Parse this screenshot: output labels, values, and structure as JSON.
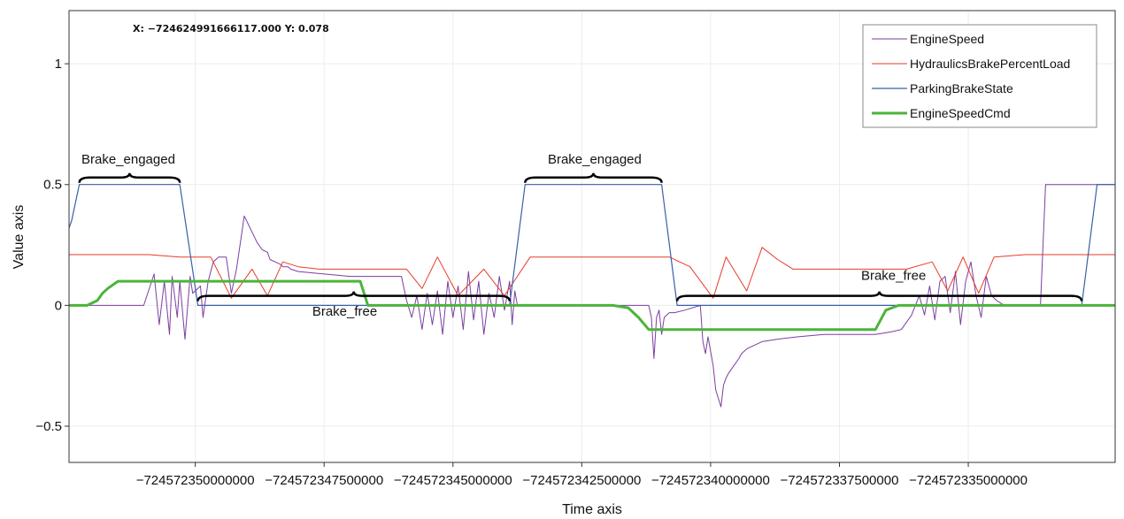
{
  "readout": {
    "text": "X: −724624991666117.000 Y: 0.078"
  },
  "chart_data": {
    "type": "line",
    "xlabel": "Time axis",
    "ylabel": "Value axis",
    "xlim": [
      -724572352450000,
      -724572332150000
    ],
    "ylim": [
      -0.65,
      1.22
    ],
    "x_tick_values": [
      -724572350000000,
      -724572347500000,
      -724572345000000,
      -724572342500000,
      -724572340000000,
      -724572337500000,
      -724572335000000
    ],
    "x_tick_labels": [
      "−724572350000000",
      "−724572347500000",
      "−724572345000000",
      "−724572342500000",
      "−724572340000000",
      "−724572337500000",
      "−724572335000000"
    ],
    "y_tick_values": [
      1,
      0.5,
      0,
      -0.5
    ],
    "y_tick_labels": [
      "1",
      "0.5",
      "0",
      "−0.5"
    ],
    "grid": true,
    "legend_position": "top-right",
    "series": [
      {
        "name": "EngineSpeed",
        "color": "#7b3fa0",
        "x": [
          -724572352450000,
          -724572351000000,
          -724572350800000,
          -724572350700000,
          -724572350600000,
          -724572350500000,
          -724572350450000,
          -724572350350000,
          -724572350300000,
          -724572350200000,
          -724572350100000,
          -724572350050000,
          -724572349900000,
          -724572349850000,
          -724572349750000,
          -724572349650000,
          -724572349550000,
          -724572349400000,
          -724572349300000,
          -724572349200000,
          -724572349050000,
          -724572348800000,
          -724572348700000,
          -724572348600000,
          -724572348550000,
          -724572348450000,
          -724572348350000,
          -724572348300000,
          -724572348200000,
          -724572348150000,
          -724572348000000,
          -724572347500000,
          -724572347000000,
          -724572346500000,
          -724572346000000,
          -724572345900000,
          -724572345800000,
          -724572345700000,
          -724572345600000,
          -724572345500000,
          -724572345400000,
          -724572345300000,
          -724572345200000,
          -724572345100000,
          -724572345000000,
          -724572344900000,
          -724572344800000,
          -724572344700000,
          -724572344600000,
          -724572344500000,
          -724572344400000,
          -724572344300000,
          -724572344200000,
          -724572344100000,
          -724572344000000,
          -724572343900000,
          -724572343850000,
          -724572343800000,
          -724572343750000,
          -724572343700000,
          -724572343000000,
          -724572342000000,
          -724572341200000,
          -724572341150000,
          -724572341100000,
          -724572341050000,
          -724572341000000,
          -724572340950000,
          -724572340900000,
          -724572340800000,
          -724572340700000,
          -724572340500000,
          -724572340200000,
          -724572340150000,
          -724572340100000,
          -724572340050000,
          -724572339950000,
          -724572339900000,
          -724572339800000,
          -724572339750000,
          -724572339700000,
          -724572339650000,
          -724572339550000,
          -724572339450000,
          -724572339400000,
          -724572339300000,
          -724572339200000,
          -724572339000000,
          -724572338700000,
          -724572338300000,
          -724572337800000,
          -724572337500000,
          -724572337200000,
          -724572336800000,
          -724572336500000,
          -724572336300000,
          -724572336100000,
          -724572335950000,
          -724572335850000,
          -724572335750000,
          -724572335650000,
          -724572335550000,
          -724572335450000,
          -724572335350000,
          -724572335250000,
          -724572335150000,
          -724572335050000,
          -724572334950000,
          -724572334850000,
          -724572334750000,
          -724572334650000,
          -724572334550000,
          -724572334450000,
          -724572334300000,
          -724572334100000,
          -724572333600000,
          -724572333500000,
          -724572332150000
        ],
        "y": [
          0,
          0,
          0.13,
          -0.08,
          0.1,
          -0.12,
          0.12,
          -0.05,
          0.1,
          -0.14,
          0.12,
          0.05,
          0.08,
          -0.05,
          0.1,
          0.18,
          0.2,
          0.2,
          0.05,
          0.15,
          0.37,
          0.26,
          0.23,
          0.22,
          0.19,
          0.18,
          0.17,
          0.16,
          0.16,
          0.15,
          0.14,
          0.13,
          0.12,
          0.12,
          0.12,
          0.02,
          -0.05,
          0.04,
          -0.1,
          0.05,
          -0.08,
          0.06,
          -0.12,
          0.1,
          -0.05,
          0.08,
          -0.1,
          0.14,
          -0.06,
          0.1,
          -0.12,
          0.05,
          -0.05,
          0.12,
          -0.02,
          0.1,
          -0.08,
          0.06,
          0,
          0,
          0,
          0,
          0,
          -0.05,
          -0.22,
          -0.05,
          -0.02,
          -0.12,
          -0.05,
          -0.03,
          -0.03,
          -0.02,
          0,
          -0.15,
          -0.2,
          -0.13,
          -0.25,
          -0.35,
          -0.42,
          -0.33,
          -0.3,
          -0.28,
          -0.25,
          -0.22,
          -0.2,
          -0.18,
          -0.17,
          -0.15,
          -0.14,
          -0.13,
          -0.12,
          -0.12,
          -0.12,
          -0.12,
          -0.11,
          -0.1,
          -0.04,
          0.04,
          -0.04,
          0.08,
          -0.06,
          0.1,
          0.12,
          -0.03,
          0.14,
          -0.08,
          0.1,
          0.18,
          0.04,
          -0.05,
          0.12,
          0.04,
          0.02,
          0,
          0,
          0,
          0.5,
          0.5
        ]
      },
      {
        "name": "HydraulicsBrakePercentLoad",
        "color": "#e83a2a",
        "x": [
          -724572352450000,
          -724572350900000,
          -724572350300000,
          -724572349700000,
          -724572349300000,
          -724572348900000,
          -724572348600000,
          -724572348300000,
          -724572348000000,
          -724572347600000,
          -724572346700000,
          -724572345900000,
          -724572345600000,
          -724572345300000,
          -724572344900000,
          -724572344400000,
          -724572344000000,
          -724572343500000,
          -724572340800000,
          -724572340400000,
          -724572339950000,
          -724572339700000,
          -724572339300000,
          -724572339000000,
          -724572338700000,
          -724572338400000,
          -724572337500000,
          -724572336200000,
          -724572335700000,
          -724572335400000,
          -724572335100000,
          -724572334800000,
          -724572334500000,
          -724572333900000,
          -724572332150000
        ],
        "y": [
          0.21,
          0.21,
          0.2,
          0.2,
          0.03,
          0.15,
          0.04,
          0.18,
          0.16,
          0.15,
          0.15,
          0.15,
          0.07,
          0.2,
          0.04,
          0.15,
          0.04,
          0.2,
          0.2,
          0.16,
          0.03,
          0.2,
          0.06,
          0.24,
          0.19,
          0.15,
          0.15,
          0.15,
          0.18,
          0.06,
          0.2,
          0.05,
          0.2,
          0.21,
          0.21
        ]
      },
      {
        "name": "ParkingBrakeState",
        "color": "#3a5fa8",
        "x": [
          -724572352450000,
          -724572352400000,
          -724572352250000,
          -724572350300000,
          -724572349950000,
          -724572343900000,
          -724572343600000,
          -724572340950000,
          -724572340650000,
          -724572332800000,
          -724572332500000,
          -724572332150000
        ],
        "y": [
          0.32,
          0.35,
          0.5,
          0.5,
          0,
          0,
          0.5,
          0.5,
          0,
          0,
          0.5,
          0.5
        ]
      },
      {
        "name": "EngineSpeedCmd",
        "color": "#4bb43a",
        "x": [
          -724572352450000,
          -724572352100000,
          -724572351900000,
          -724572351800000,
          -724572351700000,
          -724572351500000,
          -724572346800000,
          -724572346650000,
          -724572341900000,
          -724572341600000,
          -724572341400000,
          -724572341200000,
          -724572336800000,
          -724572336600000,
          -724572336350000,
          -724572332150000
        ],
        "y": [
          0,
          0,
          0.02,
          0.05,
          0.07,
          0.1,
          0.1,
          0,
          0,
          -0.01,
          -0.05,
          -0.1,
          -0.1,
          -0.02,
          0,
          0
        ]
      }
    ],
    "annotations": [
      {
        "text": "Brake_engaged",
        "x": -724572351300000,
        "y": 0.55,
        "anchor": "middle"
      },
      {
        "text": "Brake_engaged",
        "x": -724572342250000,
        "y": 0.55,
        "anchor": "middle"
      },
      {
        "text": "Brake_free",
        "x": -724572347100000,
        "y": -0.08,
        "anchor": "middle"
      },
      {
        "text": "Brake_free",
        "x": -724572336450000,
        "y": 0.07,
        "anchor": "middle"
      }
    ],
    "braces": [
      {
        "x1": -724572352250000,
        "x2": -724572350300000,
        "y": 0.5,
        "dir": "up"
      },
      {
        "x1": -724572343600000,
        "x2": -724572340950000,
        "y": 0.5,
        "dir": "up"
      },
      {
        "x1": -724572349950000,
        "x2": -724572343900000,
        "y": 0.01,
        "dir": "up"
      },
      {
        "x1": -724572340650000,
        "x2": -724572332800000,
        "y": 0.01,
        "dir": "up"
      }
    ]
  }
}
